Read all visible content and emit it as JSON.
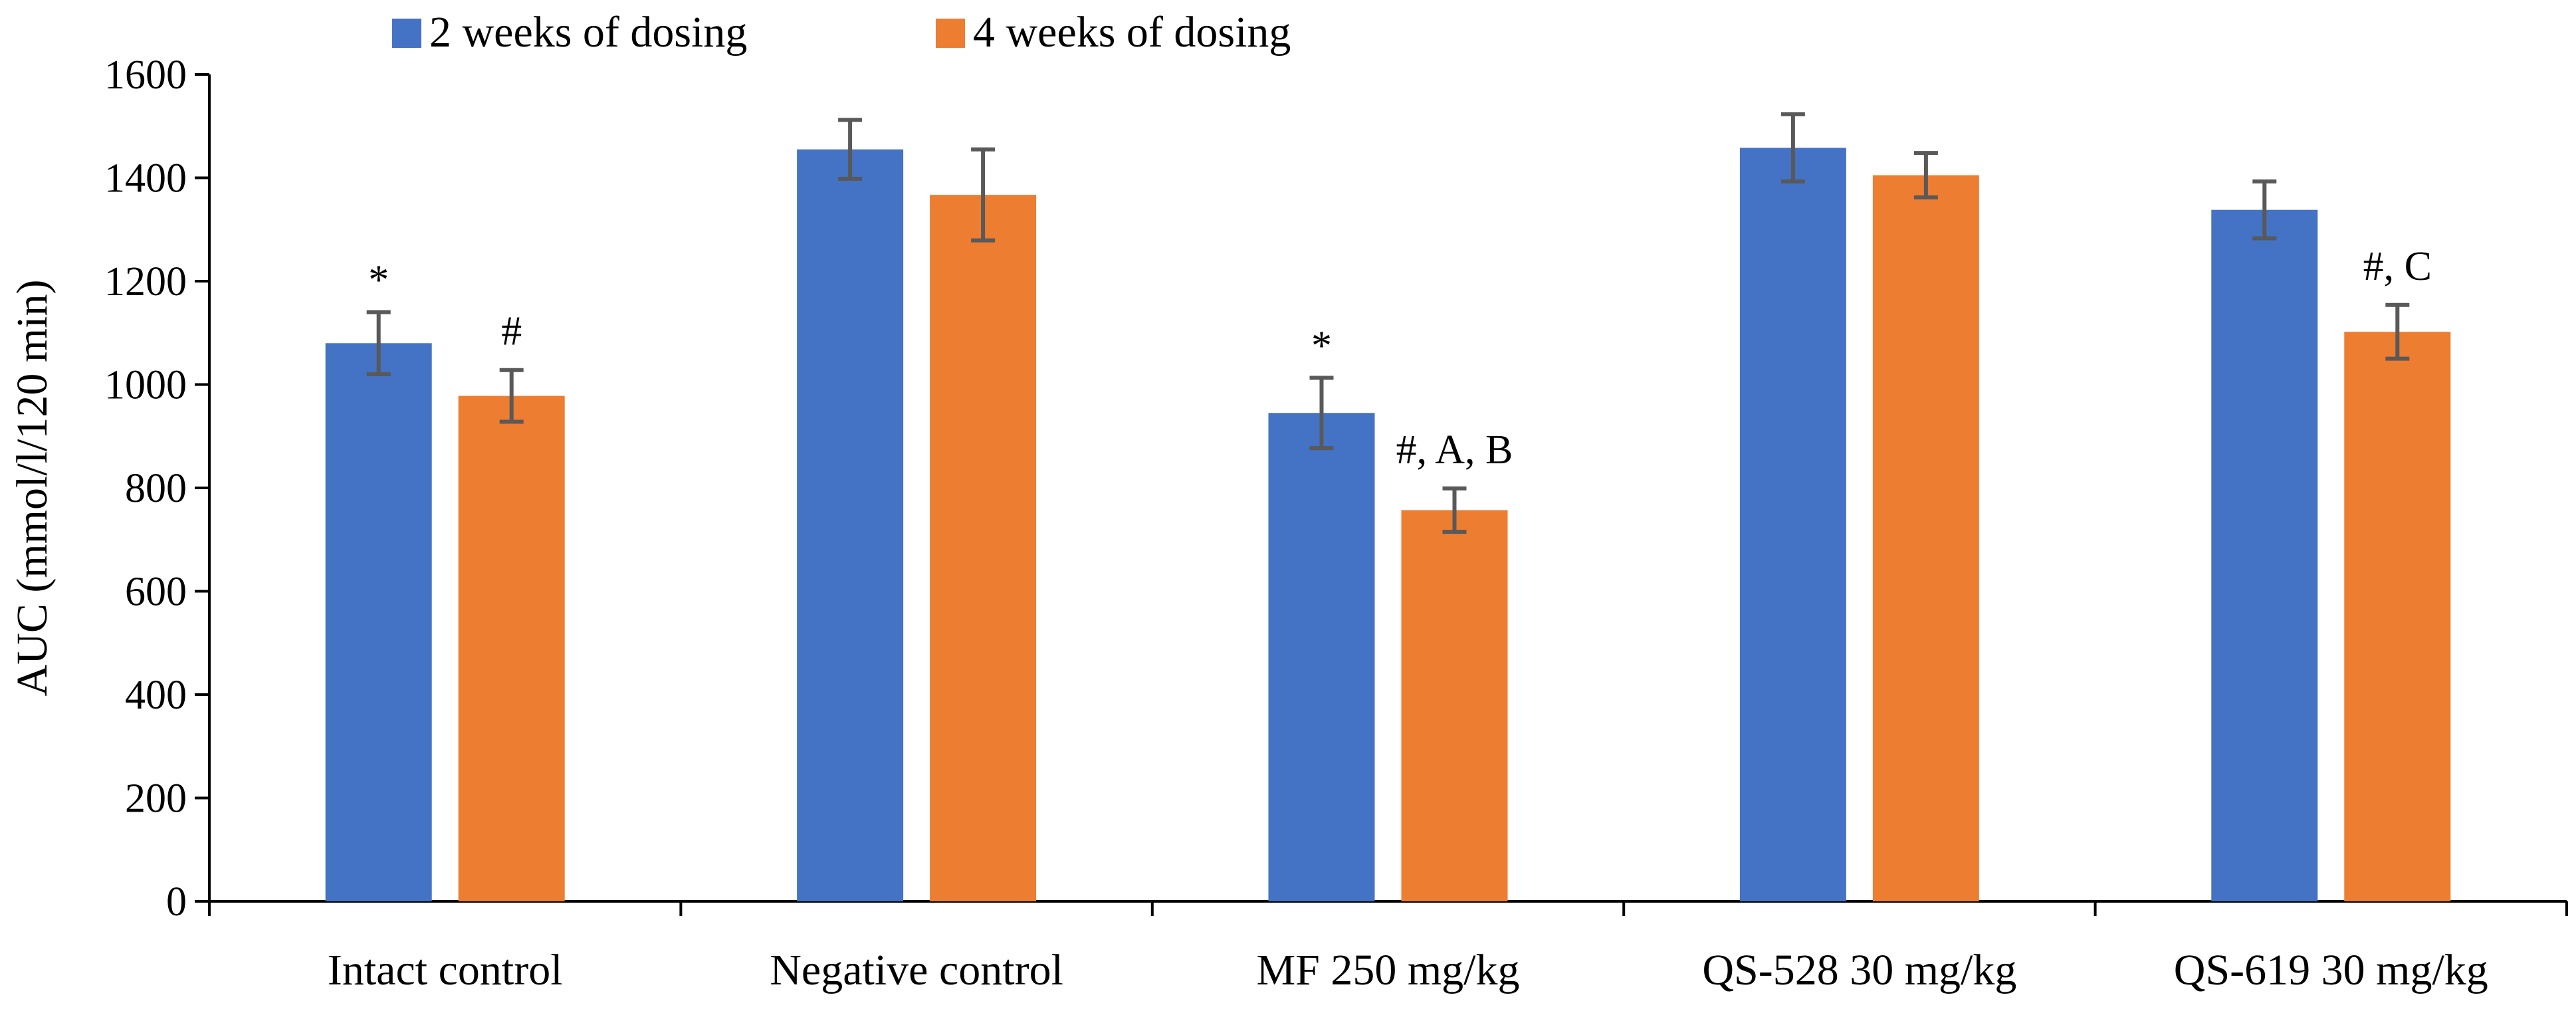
{
  "chart_data": {
    "type": "bar",
    "title": "",
    "xlabel": "",
    "ylabel": "AUC (mmol/l/120 min)",
    "ylim": [
      0,
      1600
    ],
    "yticks": [
      "0",
      "200",
      "400",
      "600",
      "800",
      "1000",
      "1200",
      "1400",
      "1600"
    ],
    "grid": false,
    "legend_position": "top",
    "categories": [
      "Intact control",
      "Negative control",
      "MF 250 mg/kg",
      "QS-528 30 mg/kg",
      "QS-619 30 mg/kg"
    ],
    "series": [
      {
        "name": "2 weeks of dosing",
        "color": "#4472C4",
        "values": [
          1080,
          1455,
          945,
          1458,
          1338
        ],
        "errors": [
          60,
          57,
          68,
          65,
          55
        ],
        "annotations": [
          "*",
          "",
          "*",
          "",
          ""
        ]
      },
      {
        "name": "4 weeks of dosing",
        "color": "#ED7D31",
        "values": [
          978,
          1367,
          757,
          1405,
          1102
        ],
        "errors": [
          50,
          88,
          42,
          43,
          52
        ],
        "annotations": [
          "#",
          "",
          "#, A, B",
          "",
          "#, C"
        ]
      }
    ],
    "errorbar_color": "#595959"
  }
}
